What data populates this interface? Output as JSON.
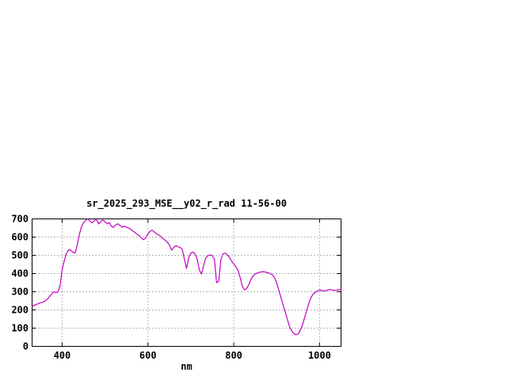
{
  "window": {
    "background_color": "#ffffff"
  },
  "chart_data": {
    "type": "line",
    "title": "sr_2025_293_MSE__y02_r_rad 11-56-00",
    "xlabel": "nm",
    "ylabel": "",
    "x_unit": "nm",
    "xlim": [
      330,
      1050
    ],
    "ylim": [
      0,
      700
    ],
    "xticks": [
      400,
      600,
      800,
      1000
    ],
    "yticks": [
      0,
      100,
      200,
      300,
      400,
      500,
      600,
      700
    ],
    "grid": true,
    "legend": "none",
    "line_color": "#c000c0",
    "series": [
      {
        "x_start": 330,
        "x_step": 5,
        "values": [
          220,
          225,
          230,
          235,
          240,
          242,
          250,
          258,
          272,
          285,
          300,
          295,
          298,
          330,
          420,
          470,
          510,
          530,
          528,
          518,
          512,
          555,
          615,
          655,
          680,
          692,
          700,
          688,
          678,
          690,
          698,
          672,
          688,
          693,
          685,
          673,
          680,
          660,
          653,
          668,
          673,
          663,
          655,
          660,
          655,
          650,
          643,
          633,
          625,
          615,
          608,
          595,
          585,
          598,
          618,
          632,
          638,
          628,
          618,
          612,
          603,
          593,
          583,
          572,
          558,
          528,
          543,
          553,
          548,
          543,
          533,
          478,
          428,
          488,
          512,
          518,
          508,
          478,
          418,
          398,
          448,
          488,
          498,
          503,
          498,
          478,
          350,
          358,
          475,
          508,
          512,
          503,
          488,
          468,
          452,
          437,
          417,
          378,
          330,
          310,
          318,
          338,
          368,
          388,
          398,
          403,
          407,
          409,
          410,
          407,
          404,
          399,
          393,
          378,
          348,
          308,
          268,
          228,
          188,
          148,
          108,
          85,
          70,
          64,
          68,
          88,
          118,
          158,
          198,
          238,
          268,
          288,
          298,
          304,
          309,
          307,
          304,
          307,
          310,
          312,
          309,
          307,
          309,
          311,
          309
        ]
      }
    ]
  }
}
